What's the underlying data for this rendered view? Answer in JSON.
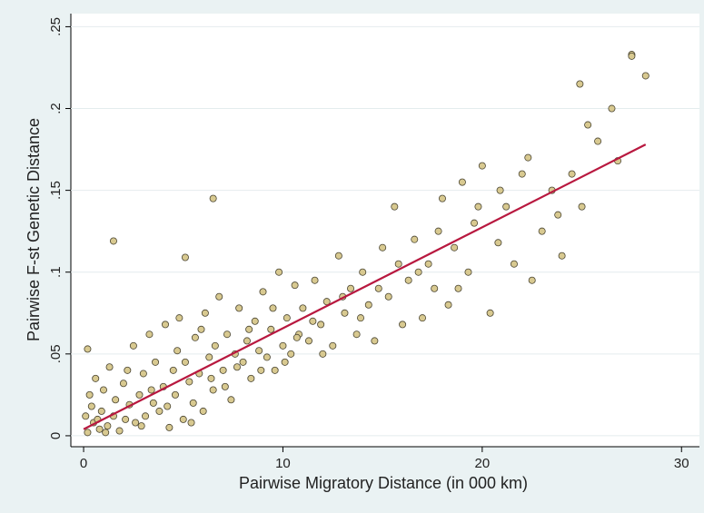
{
  "chart_data": {
    "type": "scatter",
    "xlabel": "Pairwise Migratory Distance (in 000 km)",
    "ylabel": "Pairwise F-st Genetic Distance",
    "xlim": [
      -0.64,
      30.9
    ],
    "ylim": [
      -0.0067,
      0.258
    ],
    "xticks": [
      0,
      10,
      20,
      30
    ],
    "yticks": [
      0,
      {
        "value": 0.05,
        "label": ".05"
      },
      {
        "value": 0.1,
        "label": ".1"
      },
      {
        "value": 0.15,
        "label": ".15"
      },
      {
        "value": 0.2,
        "label": ".2"
      },
      {
        "value": 0.25,
        "label": ".25"
      }
    ],
    "grid": true,
    "series": [
      {
        "type": "scatter",
        "color": "#d8c990",
        "x": [
          0.1,
          0.2,
          0.3,
          0.5,
          0.6,
          0.8,
          0.9,
          1.0,
          1.2,
          1.3,
          1.5,
          1.6,
          1.8,
          2.0,
          2.1,
          2.3,
          2.5,
          2.6,
          2.8,
          3.0,
          3.1,
          3.3,
          3.5,
          3.6,
          3.8,
          4.0,
          4.1,
          4.3,
          4.5,
          4.6,
          4.8,
          5.0,
          5.1,
          5.3,
          5.5,
          5.6,
          5.8,
          6.0,
          6.1,
          6.3,
          6.5,
          6.6,
          6.8,
          7.0,
          7.2,
          7.4,
          7.6,
          7.8,
          8.0,
          8.2,
          8.4,
          8.6,
          8.8,
          9.0,
          9.2,
          9.4,
          9.6,
          9.8,
          10.0,
          10.2,
          10.4,
          10.6,
          10.8,
          11.0,
          11.3,
          11.6,
          11.9,
          12.2,
          12.5,
          12.8,
          13.1,
          13.4,
          13.7,
          14.0,
          14.3,
          14.6,
          15.0,
          15.3,
          15.6,
          16.0,
          16.3,
          16.6,
          17.0,
          17.3,
          17.6,
          18.0,
          18.3,
          18.6,
          19.0,
          19.3,
          19.6,
          20.0,
          20.4,
          20.8,
          21.2,
          21.6,
          22.0,
          22.5,
          23.0,
          23.5,
          24.0,
          24.5,
          25.0,
          25.3,
          25.8,
          26.5,
          27.5,
          28.2,
          1.5,
          6.5,
          5.1,
          0.2,
          0.4,
          0.7,
          1.1,
          2.2,
          2.9,
          3.4,
          4.2,
          4.7,
          5.4,
          5.9,
          6.4,
          7.1,
          7.7,
          8.3,
          8.9,
          9.5,
          10.1,
          10.7,
          11.5,
          12.0,
          13.0,
          13.9,
          14.8,
          15.8,
          16.8,
          17.8,
          18.8,
          19.8,
          20.9,
          22.3,
          23.8,
          24.9,
          26.8,
          27.5
        ],
        "values": [
          0.012,
          0.002,
          0.025,
          0.008,
          0.035,
          0.004,
          0.015,
          0.028,
          0.006,
          0.042,
          0.012,
          0.022,
          0.003,
          0.032,
          0.01,
          0.019,
          0.055,
          0.008,
          0.025,
          0.038,
          0.012,
          0.062,
          0.02,
          0.045,
          0.015,
          0.03,
          0.068,
          0.005,
          0.04,
          0.025,
          0.072,
          0.01,
          0.045,
          0.033,
          0.02,
          0.06,
          0.038,
          0.015,
          0.075,
          0.048,
          0.028,
          0.055,
          0.085,
          0.04,
          0.062,
          0.022,
          0.05,
          0.078,
          0.045,
          0.058,
          0.035,
          0.07,
          0.052,
          0.088,
          0.048,
          0.065,
          0.04,
          0.1,
          0.055,
          0.072,
          0.05,
          0.092,
          0.062,
          0.078,
          0.058,
          0.095,
          0.068,
          0.082,
          0.055,
          0.11,
          0.075,
          0.09,
          0.062,
          0.1,
          0.08,
          0.058,
          0.115,
          0.085,
          0.14,
          0.068,
          0.095,
          0.12,
          0.072,
          0.105,
          0.09,
          0.145,
          0.08,
          0.115,
          0.155,
          0.1,
          0.13,
          0.165,
          0.075,
          0.118,
          0.14,
          0.105,
          0.16,
          0.095,
          0.125,
          0.15,
          0.11,
          0.16,
          0.14,
          0.19,
          0.18,
          0.2,
          0.233,
          0.22,
          0.119,
          0.145,
          0.109,
          0.053,
          0.018,
          0.01,
          0.002,
          0.04,
          0.006,
          0.028,
          0.018,
          0.052,
          0.008,
          0.065,
          0.035,
          0.03,
          0.042,
          0.065,
          0.04,
          0.078,
          0.045,
          0.06,
          0.07,
          0.05,
          0.085,
          0.072,
          0.09,
          0.105,
          0.1,
          0.125,
          0.09,
          0.14,
          0.15,
          0.17,
          0.135,
          0.215,
          0.168,
          0.232
        ]
      },
      {
        "type": "line",
        "color": "#b8183f",
        "x": [
          0,
          28.2
        ],
        "values": [
          0.004,
          0.178
        ]
      }
    ]
  }
}
